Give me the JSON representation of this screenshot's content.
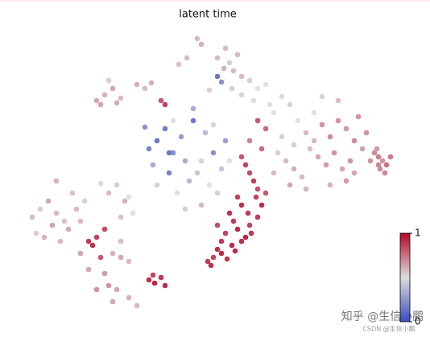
{
  "chart_data": {
    "type": "scatter",
    "title": "latent time",
    "x": [
      245,
      250,
      232,
      222,
      270,
      278,
      285,
      295,
      300,
      288,
      270,
      275,
      310,
      320,
      330,
      260,
      300,
      315,
      290,
      280,
      120,
      130,
      140,
      150,
      125,
      135,
      170,
      180,
      188,
      145,
      185,
      195,
      205,
      215,
      190,
      210,
      225,
      240,
      255,
      265,
      200,
      230,
      245,
      260,
      270,
      220,
      235,
      250,
      280,
      205,
      180,
      240,
      265,
      215,
      275,
      195,
      250,
      230,
      285,
      210,
      320,
      330,
      340,
      350,
      360,
      370,
      380,
      390,
      400,
      410,
      420,
      430,
      440,
      345,
      355,
      365,
      375,
      385,
      395,
      405,
      415,
      425,
      435,
      450,
      340,
      360,
      380,
      400,
      420,
      445,
      310,
      325,
      335,
      350,
      365,
      390,
      410,
      430,
      455,
      440,
      465,
      470,
      475,
      480,
      472,
      468,
      478,
      460,
      485,
      470,
      300,
      305,
      310,
      315,
      320,
      295,
      300,
      308,
      318,
      325,
      285,
      290,
      295,
      305,
      312,
      280,
      288,
      275,
      270,
      265,
      258,
      262,
      275,
      282,
      292,
      300,
      310,
      320,
      330,
      270,
      40,
      50,
      60,
      70,
      80,
      45,
      55,
      65,
      75,
      85,
      95,
      105,
      110,
      120,
      130,
      100,
      115,
      125,
      135,
      145,
      150,
      160,
      155,
      165,
      140,
      150,
      130,
      145,
      160,
      170,
      70,
      90,
      100,
      135,
      140,
      150,
      120,
      110,
      160,
      125,
      185,
      192,
      200,
      205,
      190
    ],
    "values": [
      48,
      55,
      72,
      80,
      72,
      85,
      78,
      68,
      95,
      110,
      95,
      102,
      100,
      110,
      105,
      112,
      118,
      125,
      88,
      60,
      125,
      118,
      110,
      122,
      130,
      100,
      105,
      110,
      103,
      128,
      185,
      175,
      160,
      190,
      205,
      215,
      170,
      150,
      165,
      190,
      125,
      200,
      215,
      230,
      240,
      240,
      225,
      200,
      175,
      130,
      158,
      135,
      155,
      150,
      210,
      230,
      255,
      260,
      200,
      190,
      150,
      160,
      140,
      170,
      130,
      150,
      165,
      140,
      155,
      170,
      150,
      160,
      175,
      190,
      200,
      210,
      220,
      185,
      195,
      205,
      190,
      210,
      200,
      185,
      215,
      230,
      235,
      120,
      125,
      145,
      175,
      185,
      130,
      120,
      180,
      175,
      230,
      225,
      165,
      215,
      190,
      195,
      200,
      205,
      210,
      185,
      215,
      200,
      195,
      205,
      195,
      205,
      215,
      225,
      235,
      245,
      255,
      265,
      245,
      255,
      265,
      275,
      285,
      295,
      290,
      290,
      305,
      300,
      310,
      320,
      325,
      330,
      315,
      322,
      312,
      300,
      280,
      270,
      240,
      280,
      270,
      260,
      250,
      265,
      275,
      290,
      295,
      280,
      300,
      285,
      260,
      250,
      300,
      295,
      285,
      315,
      305,
      320,
      240,
      230,
      320,
      325,
      250,
      265,
      315,
      300,
      340,
      360,
      370,
      380,
      225,
      240,
      275,
      355,
      375,
      270,
      360,
      335,
      245,
      228,
      348,
      352,
      345,
      355,
      342
    ],
    "latent_time": [
      0.6,
      0.62,
      0.6,
      0.58,
      0.6,
      0.62,
      0.55,
      0.6,
      0.6,
      0.55,
      0.1,
      0.2,
      0.55,
      0.5,
      0.5,
      0.55,
      0.45,
      0.5,
      0.6,
      0.6,
      0.65,
      0.62,
      0.65,
      0.6,
      0.66,
      0.55,
      0.62,
      0.6,
      0.63,
      0.64,
      0.15,
      0.1,
      0.12,
      0.2,
      0.3,
      0.15,
      0.25,
      0.1,
      0.35,
      0.2,
      0.85,
      0.3,
      0.4,
      0.5,
      0.55,
      0.5,
      0.35,
      0.45,
      0.25,
      0.9,
      0.2,
      0.3,
      0.45,
      0.5,
      0.4,
      0.45,
      0.6,
      0.55,
      0.5,
      0.1,
      0.85,
      0.8,
      0.5,
      0.55,
      0.45,
      0.5,
      0.6,
      0.5,
      0.7,
      0.72,
      0.7,
      0.68,
      0.72,
      0.55,
      0.6,
      0.62,
      0.6,
      0.58,
      0.65,
      0.68,
      0.7,
      0.65,
      0.7,
      0.66,
      0.6,
      0.65,
      0.62,
      0.45,
      0.6,
      0.7,
      0.75,
      0.8,
      0.5,
      0.48,
      0.55,
      0.6,
      0.62,
      0.68,
      0.7,
      0.65,
      0.72,
      0.75,
      0.7,
      0.78,
      0.72,
      0.68,
      0.74,
      0.7,
      0.76,
      0.73,
      0.85,
      0.9,
      0.88,
      0.92,
      0.87,
      0.9,
      0.95,
      0.93,
      0.9,
      0.96,
      0.95,
      0.92,
      0.96,
      0.98,
      0.94,
      0.9,
      0.97,
      0.93,
      0.95,
      0.9,
      0.92,
      0.95,
      0.97,
      0.93,
      0.96,
      0.95,
      0.9,
      0.93,
      0.85,
      0.88,
      0.6,
      0.55,
      0.65,
      0.6,
      0.58,
      0.55,
      0.62,
      0.66,
      0.6,
      0.64,
      0.6,
      0.55,
      0.92,
      0.9,
      0.88,
      0.65,
      0.95,
      0.85,
      0.6,
      0.55,
      0.65,
      0.6,
      0.62,
      0.5,
      0.62,
      0.6,
      0.68,
      0.65,
      0.62,
      0.6,
      0.62,
      0.58,
      0.6,
      0.7,
      0.65,
      0.58,
      0.7,
      0.65,
      0.5,
      0.48,
      0.95,
      0.98,
      0.93,
      0.96,
      0.9
    ],
    "xlim": [
      0,
      534
    ],
    "ylim": [
      419,
      0
    ],
    "colormap": [
      "#3b4cc0",
      "#dddddd",
      "#b40426"
    ],
    "colorbar": {
      "lim": [
        0,
        1
      ],
      "ticks": [
        0,
        1
      ]
    },
    "annotations": [
      "知乎 @生信小鹏",
      "CSDN @生信小鹏"
    ]
  }
}
